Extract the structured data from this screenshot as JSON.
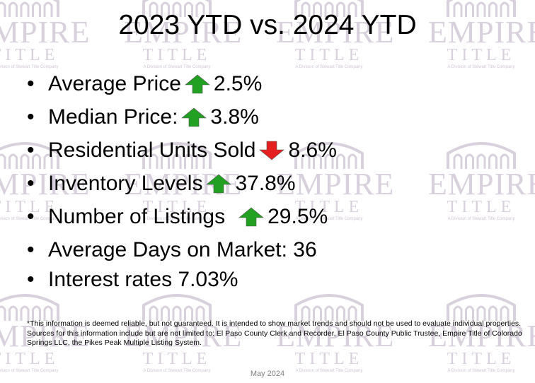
{
  "slide": {
    "title": "2023 YTD vs. 2024 YTD",
    "date": "May 2024"
  },
  "watermark": {
    "name": "EMPIRE",
    "title": "TITLE",
    "division": "A Division of Stewart Title Company",
    "icon": "house-arches-icon",
    "color": "#d9d0dd"
  },
  "bullets": [
    {
      "label": "Average Price",
      "value": "2.5%",
      "trend": "up"
    },
    {
      "label": "Median Price:",
      "value": "3.8%",
      "trend": "up"
    },
    {
      "label": "Residential Units Sold",
      "value": "8.6%",
      "trend": "down"
    },
    {
      "label": "Inventory Levels",
      "value": "37.8%",
      "trend": "up"
    },
    {
      "label": "Number of Listings",
      "value": "29.5%",
      "trend": "up"
    },
    {
      "label": "Average Days on Market: 36",
      "value": "",
      "trend": "none"
    },
    {
      "label": "Interest rates 7.03%",
      "value": "",
      "trend": "none"
    }
  ],
  "colors": {
    "up_arrow": "#22a022",
    "down_arrow": "#e62020"
  },
  "footnote": "*This information is deemed reliable, but not guaranteed.  It is intended to show market trends and should not be used to evaluate individual properties.  Sources for this information include but are not limited to: El Paso County Clerk and Recorder, El Paso County Public Trustee, Empire Title of Colorado Springs LLC, the Pikes Peak Multiple Listing System."
}
